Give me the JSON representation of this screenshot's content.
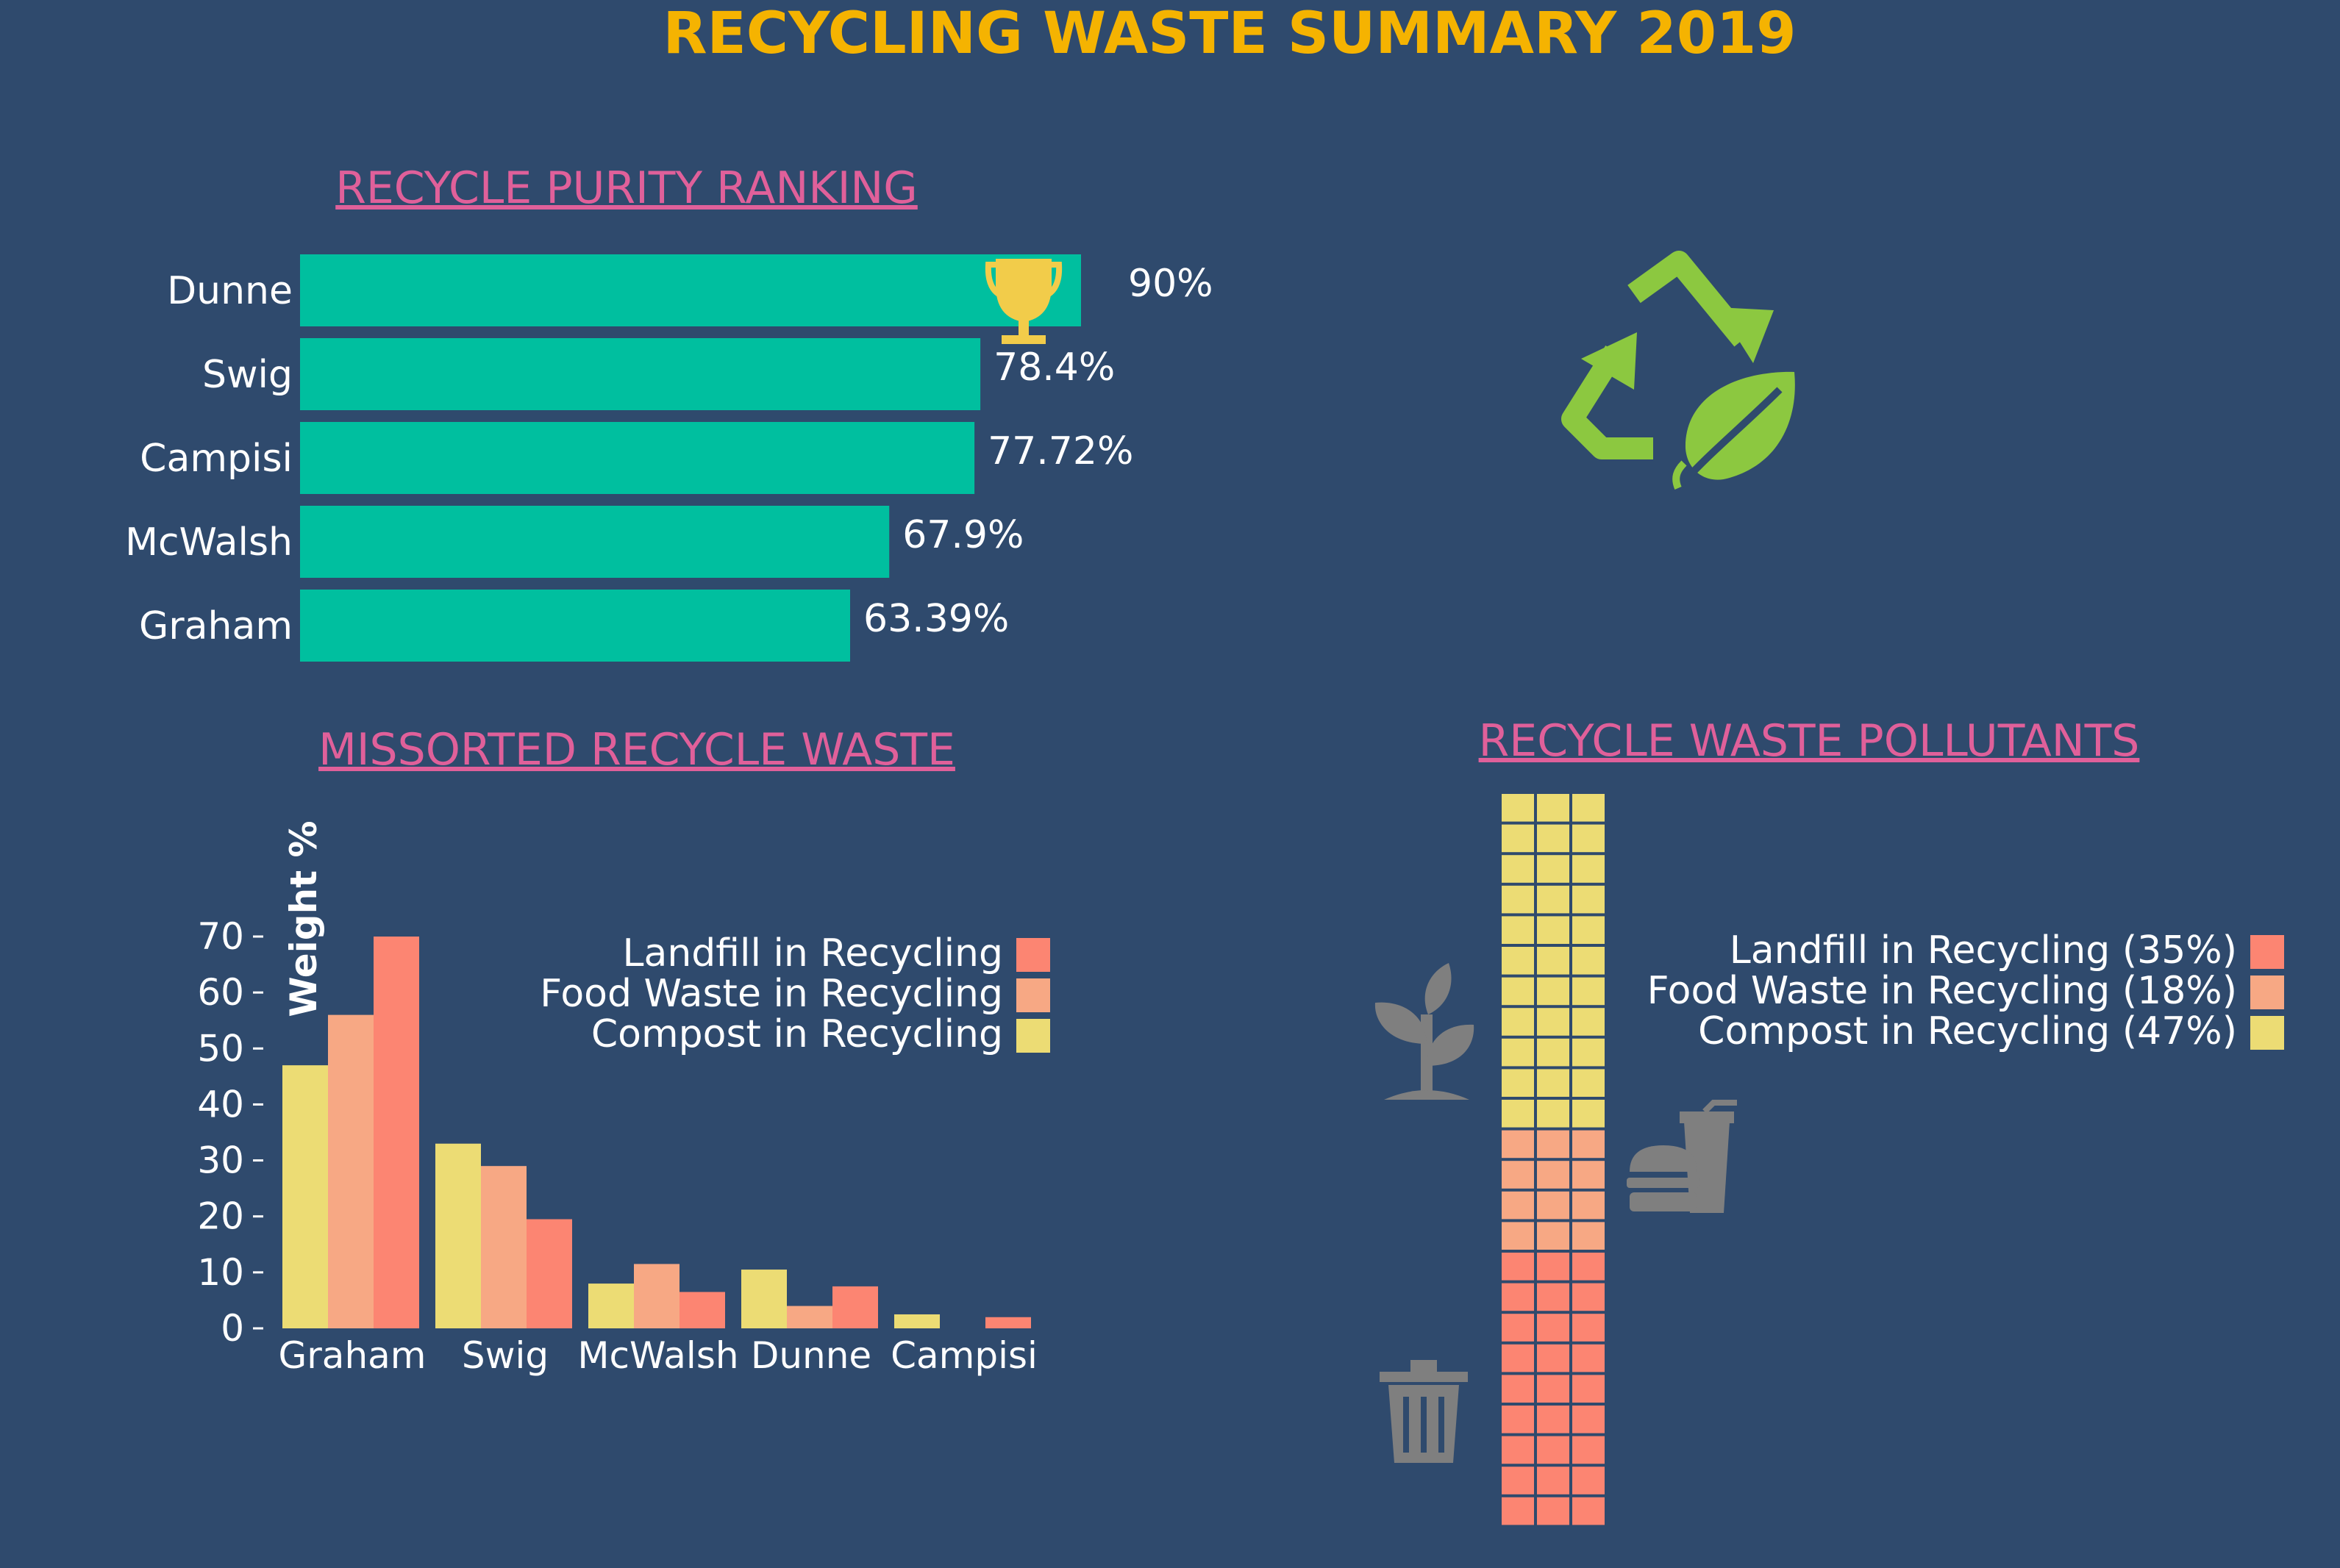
{
  "title": "RECYCLING WASTE SUMMARY 2019",
  "colors": {
    "background": "#2f4a6d",
    "title": "#f5b301",
    "section_title": "#e0609a",
    "purity_bar": "#00bf9f",
    "trophy": "#f2cc4a",
    "recycle_logo": "#8cc840",
    "icon_gray": "#7f7f7f",
    "landfill": "#fc8572",
    "food": "#f7a884",
    "compost": "#ecdc74"
  },
  "icons": {
    "trophy": "trophy-icon",
    "recycle": "recycle-leaf-icon",
    "plant": "plant-sprout-icon",
    "food": "burger-drink-icon",
    "trash": "trash-can-icon"
  },
  "chart_data": [
    {
      "type": "bar",
      "orientation": "horizontal",
      "title": "RECYCLE PURITY RANKING",
      "categories": [
        "Dunne",
        "Swig",
        "Campisi",
        "McWalsh",
        "Graham"
      ],
      "values": [
        90,
        78.4,
        77.72,
        67.9,
        63.39
      ],
      "value_labels": [
        "90%",
        "78.4%",
        "77.72%",
        "67.9%",
        "63.39%"
      ],
      "xlim": [
        0,
        100
      ],
      "highlight": "Dunne"
    },
    {
      "type": "bar",
      "title": "MISSORTED RECYCLE WASTE",
      "ylabel": "Weight %",
      "categories": [
        "Graham",
        "Swig",
        "McWalsh",
        "Dunne",
        "Campisi"
      ],
      "series": [
        {
          "name": "Compost in Recycling",
          "values": [
            47,
            33,
            8,
            10.5,
            2.5
          ]
        },
        {
          "name": "Food Waste in Recycling",
          "values": [
            56,
            29,
            11.5,
            4,
            0
          ]
        },
        {
          "name": "Landfill in Recycling",
          "values": [
            70,
            19.5,
            6.5,
            7.5,
            2
          ]
        }
      ],
      "legend_order": [
        "Landfill in Recycling",
        "Food Waste in Recycling",
        "Compost in Recycling"
      ],
      "yticks": [
        "0",
        "10",
        "20",
        "30",
        "40",
        "50",
        "60",
        "70"
      ],
      "ylim": [
        0,
        70
      ],
      "legend": "top-right"
    },
    {
      "type": "waffle",
      "title": "RECYCLE WASTE POLLUTANTS",
      "columns": 3,
      "rows": 24,
      "series": [
        {
          "name": "Landfill in Recycling (35%)",
          "value": 35
        },
        {
          "name": "Food Waste in Recycling (18%)",
          "value": 18
        },
        {
          "name": "Compost in Recycling (47%)",
          "value": 47
        }
      ],
      "legend": "right"
    }
  ]
}
